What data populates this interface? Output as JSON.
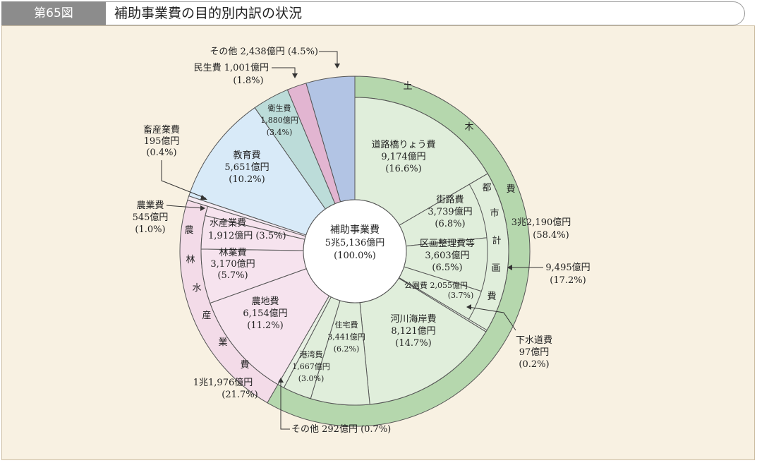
{
  "header": {
    "figure_no": "第65図",
    "title": "補助事業費の目的別内訳の状況"
  },
  "colors": {
    "doboku_inner": "#e0eedb",
    "doboku_outer": "#b5d7ad",
    "eisei": "#bcdcd9",
    "minsei": "#e2b5d1",
    "sonota": "#b2c4e4",
    "kyoiku": "#d8eaf8",
    "chikusan": "#f5eaf2",
    "norin_inner": "#f6e3ee",
    "norin_outer": "#f3dbe8",
    "other_small": "#e7f0e3",
    "stroke": "#555555"
  },
  "chart_data": {
    "type": "pie",
    "title": "補助事業費の目的別内訳の状況",
    "center_label": [
      "補助事業費",
      "5兆5,136億円",
      "(100.0%)"
    ],
    "inner_ring": [
      {
        "name": "道路橋りょう費",
        "amount": "9,174億円",
        "pct": 16.6,
        "group": "doboku"
      },
      {
        "name": "街路費",
        "amount": "3,739億円",
        "pct": 6.8,
        "group": "doboku"
      },
      {
        "name": "区画整理費等",
        "amount": "3,603億円",
        "pct": 6.5,
        "group": "doboku"
      },
      {
        "name": "公園費",
        "amount": "2,055億円",
        "pct": 3.7,
        "group": "doboku"
      },
      {
        "name": "下水道費",
        "amount": "97億円",
        "pct": 0.2,
        "group": "doboku"
      },
      {
        "name": "河川海岸費",
        "amount": "8,121億円",
        "pct": 14.7,
        "group": "doboku"
      },
      {
        "name": "住宅費",
        "amount": "3,441億円",
        "pct": 6.2,
        "group": "doboku"
      },
      {
        "name": "港湾費",
        "amount": "1,667億円",
        "pct": 3.0,
        "group": "doboku"
      },
      {
        "name": "その他",
        "amount": "292億円",
        "pct": 0.7,
        "group": "doboku"
      },
      {
        "name": "農地費",
        "amount": "6,154億円",
        "pct": 11.2,
        "group": "norin"
      },
      {
        "name": "林業費",
        "amount": "3,170億円",
        "pct": 5.7,
        "group": "norin"
      },
      {
        "name": "水産業費",
        "amount": "1,912億円",
        "pct": 3.5,
        "group": "norin"
      },
      {
        "name": "農業費",
        "amount": "545億円",
        "pct": 1.0,
        "group": "norin"
      },
      {
        "name": "畜産業費",
        "amount": "195億円",
        "pct": 0.4,
        "group": "chikusan"
      },
      {
        "name": "教育費",
        "amount": "5,651億円",
        "pct": 10.2,
        "group": "kyoiku"
      },
      {
        "name": "衛生費",
        "amount": "1,880億円",
        "pct": 3.4,
        "group": "eisei"
      },
      {
        "name": "民生費",
        "amount": "1,001億円",
        "pct": 1.8,
        "group": "minsei"
      },
      {
        "name": "その他",
        "amount": "2,438億円",
        "pct": 4.5,
        "group": "sonota"
      }
    ],
    "outer_ring": [
      {
        "name": "土木費",
        "amount": "3兆2,190億円",
        "pct": 58.4
      },
      {
        "name": "農林水産業費",
        "amount": "1兆1,976億円",
        "pct": 21.7
      }
    ],
    "sub_group": {
      "name": "都市計画費",
      "amount": "9,495億円",
      "pct": 17.2
    }
  },
  "labels": {
    "road": [
      "道路橋りょう費",
      "9,174億円",
      "(16.6%)"
    ],
    "street": [
      "街路費",
      "3,739億円",
      "(6.8%)"
    ],
    "kukaku": [
      "区画整理費等",
      "3,603億円",
      "(6.5%)"
    ],
    "park": "公園費 2,055億円",
    "park_pct": "(3.7%)",
    "river": [
      "河川海岸費",
      "8,121億円",
      "(14.7%)"
    ],
    "housing": [
      "住宅費",
      "3,441億円",
      "(6.2%)"
    ],
    "port": [
      "港湾費",
      "1,667億円",
      "(3.0%)"
    ],
    "farmland": [
      "農地費",
      "6,154億円",
      "(11.2%)"
    ],
    "forestry": [
      "林業費",
      "3,170億円",
      "(5.7%)"
    ],
    "fishery": "水産業費",
    "fishery_val": "1,912億円 (3.5%)",
    "education": [
      "教育費",
      "5,651億円",
      "(10.2%)"
    ],
    "health": [
      "衛生費",
      "1,880億円",
      "(3.4%)"
    ],
    "sonota_top": "その他 2,438億円 (4.5%)",
    "minsei": "民生費 1,001億円",
    "minsei_pct": "(1.8%)",
    "chikusan": [
      "畜産業費",
      "195億円",
      "(0.4%)"
    ],
    "nogyo": [
      "農業費",
      "545億円",
      "(1.0%)"
    ],
    "doboku_amount": "3兆2,190億円",
    "doboku_pct": "(58.4%)",
    "toshi_amount": "9,495億円",
    "toshi_pct": "(17.2%)",
    "gesui": [
      "下水道費",
      "97億円",
      "(0.2%)"
    ],
    "norin_amount": "1兆1,976億円",
    "norin_pct": "(21.7%)",
    "sonota_bottom": "その他 292億円 (0.7%)",
    "doboku_chars": [
      "土",
      "木",
      "費"
    ],
    "toshi_chars": [
      "都",
      "市",
      "計",
      "画",
      "費"
    ],
    "norin_chars": [
      "農",
      "林",
      "水",
      "産",
      "業",
      "費"
    ]
  }
}
